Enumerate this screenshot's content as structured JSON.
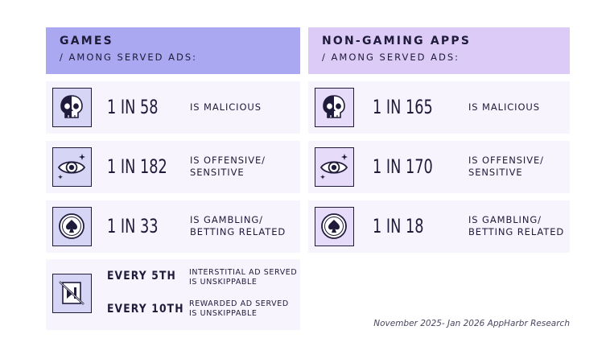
{
  "colors": {
    "games_header": "#a9a8f0",
    "apps_header": "#dccbf6",
    "card_bg": "#f7f4fd",
    "ink": "#1f1b3a"
  },
  "games": {
    "title": "GAMES",
    "subtitle": "/ AMONG SERVED ADS:",
    "rows": [
      {
        "icon": "skull-icon",
        "stat": "1 IN 58",
        "desc_lines": [
          "IS MALICIOUS"
        ]
      },
      {
        "icon": "eye-icon",
        "stat": "1 IN 182",
        "desc_lines": [
          "IS OFFENSIVE/",
          "SENSITIVE"
        ]
      },
      {
        "icon": "spade-chip-icon",
        "stat": "1 IN 33",
        "desc_lines": [
          "IS GAMBLING/",
          "BETTING RELATED"
        ]
      }
    ],
    "unskippable": {
      "icon": "no-skip-icon",
      "items": [
        {
          "freq": "EVERY 5TH",
          "desc_lines": [
            "INTERSTITIAL AD SERVED",
            "IS UNSKIPPABLE"
          ]
        },
        {
          "freq": "EVERY 10TH",
          "desc_lines": [
            "REWARDED AD SERVED",
            "IS UNSKIPPABLE"
          ]
        }
      ]
    }
  },
  "apps": {
    "title": "NON-GAMING APPS",
    "subtitle": "/ AMONG SERVED ADS:",
    "rows": [
      {
        "icon": "skull-icon",
        "stat": "1 IN 165",
        "desc_lines": [
          "IS MALICIOUS"
        ]
      },
      {
        "icon": "eye-icon",
        "stat": "1 IN 170",
        "desc_lines": [
          "IS OFFENSIVE/",
          "SENSITIVE"
        ]
      },
      {
        "icon": "spade-chip-icon",
        "stat": "1 IN 18",
        "desc_lines": [
          "IS GAMBLING/",
          "BETTING RELATED"
        ]
      }
    ]
  },
  "footnote": "November 2025- Jan 2026 AppHarbr Research"
}
